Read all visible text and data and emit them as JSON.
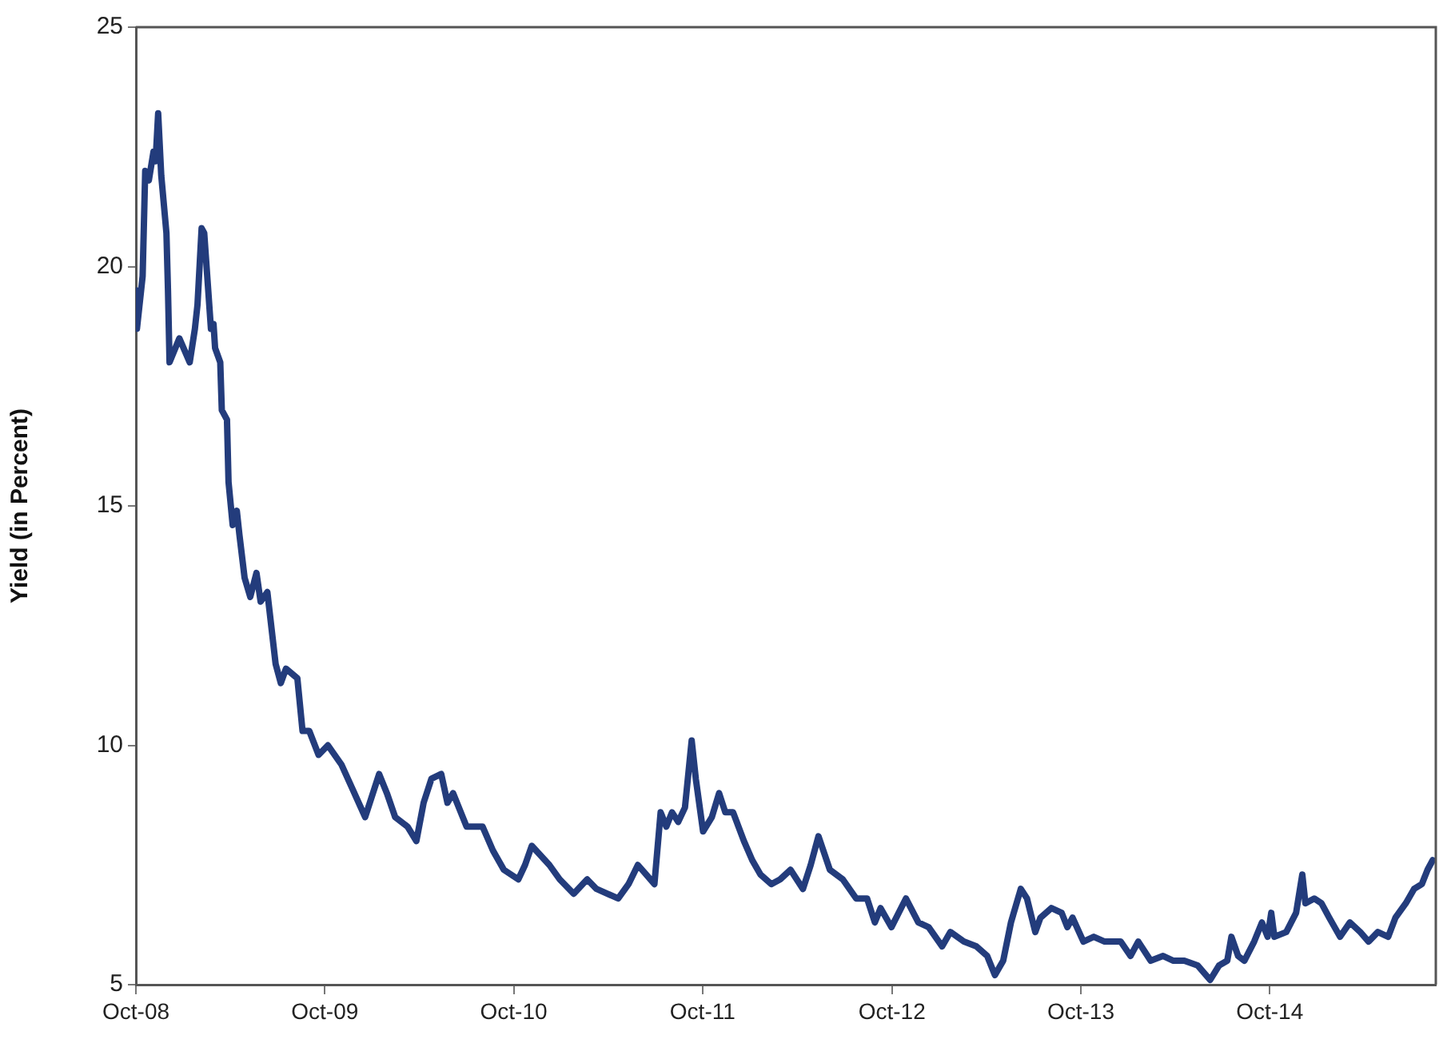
{
  "chart_data": {
    "type": "line",
    "ylabel": "Yield (in Percent)",
    "x": [
      "2008-10-01",
      "2008-10-03",
      "2008-10-14",
      "2008-10-19",
      "2008-10-26",
      "2008-11-04",
      "2008-11-08",
      "2008-11-13",
      "2008-11-19",
      "2008-11-29",
      "2008-12-02",
      "2008-12-05",
      "2008-12-24",
      "2009-01-13",
      "2009-01-23",
      "2009-01-28",
      "2009-02-05",
      "2009-02-10",
      "2009-02-23",
      "2009-02-28",
      "2009-03-03",
      "2009-03-13",
      "2009-03-16",
      "2009-03-26",
      "2009-03-29",
      "2009-04-06",
      "2009-04-14",
      "2009-04-19",
      "2009-04-29",
      "2009-05-10",
      "2009-05-22",
      "2009-05-30",
      "2009-06-12",
      "2009-06-28",
      "2009-07-08",
      "2009-07-18",
      "2009-08-09",
      "2009-08-19",
      "2009-09-01",
      "2009-09-19",
      "2009-10-07",
      "2009-11-02",
      "2009-11-23",
      "2009-12-18",
      "2010-01-14",
      "2010-01-29",
      "2010-02-14",
      "2010-03-10",
      "2010-03-27",
      "2010-04-10",
      "2010-04-25",
      "2010-05-14",
      "2010-05-26",
      "2010-06-06",
      "2010-07-02",
      "2010-08-02",
      "2010-08-22",
      "2010-09-12",
      "2010-10-10",
      "2010-10-23",
      "2010-11-05",
      "2010-12-09",
      "2010-12-29",
      "2011-01-25",
      "2011-02-20",
      "2011-03-10",
      "2011-04-21",
      "2011-05-11",
      "2011-05-29",
      "2011-06-14",
      "2011-06-30",
      "2011-07-12",
      "2011-07-23",
      "2011-08-03",
      "2011-08-15",
      "2011-08-28",
      "2011-09-10",
      "2011-09-18",
      "2011-10-02",
      "2011-10-19",
      "2011-11-02",
      "2011-11-14",
      "2011-11-29",
      "2011-12-20",
      "2012-01-05",
      "2012-01-21",
      "2012-02-11",
      "2012-02-28",
      "2012-03-19",
      "2012-04-12",
      "2012-04-27",
      "2012-05-12",
      "2012-06-03",
      "2012-06-28",
      "2012-07-24",
      "2012-08-14",
      "2012-08-29",
      "2012-09-09",
      "2012-09-30",
      "2012-10-28",
      "2012-11-21",
      "2012-12-11",
      "2013-01-06",
      "2013-01-22",
      "2013-02-17",
      "2013-03-13",
      "2013-04-03",
      "2013-04-18",
      "2013-05-04",
      "2013-05-19",
      "2013-06-07",
      "2013-06-19",
      "2013-07-05",
      "2013-07-15",
      "2013-08-05",
      "2013-08-25",
      "2013-09-05",
      "2013-09-15",
      "2013-10-06",
      "2013-10-26",
      "2013-11-16",
      "2013-12-17",
      "2014-01-05",
      "2014-01-20",
      "2014-02-13",
      "2014-03-09",
      "2014-03-29",
      "2014-04-19",
      "2014-05-15",
      "2014-06-08",
      "2014-06-25",
      "2014-07-11",
      "2014-07-19",
      "2014-08-01",
      "2014-08-13",
      "2014-09-01",
      "2014-09-16",
      "2014-09-27",
      "2014-10-04",
      "2014-10-10",
      "2014-11-02",
      "2014-11-21",
      "2014-12-03",
      "2014-12-09",
      "2014-12-26",
      "2015-01-09",
      "2015-01-24",
      "2015-02-14",
      "2015-03-05",
      "2015-03-25",
      "2015-04-10",
      "2015-04-28",
      "2015-05-18",
      "2015-06-01",
      "2015-06-21",
      "2015-07-07",
      "2015-07-22",
      "2015-08-02",
      "2015-08-12"
    ],
    "series": [
      {
        "color": "#233c7c",
        "values": [
          19.5,
          18.7,
          19.8,
          22.0,
          21.8,
          22.4,
          22.2,
          23.2,
          21.9,
          20.7,
          19.5,
          18.0,
          18.5,
          18.0,
          18.7,
          19.2,
          20.8,
          20.7,
          18.7,
          18.8,
          18.3,
          18.0,
          17.0,
          16.8,
          15.5,
          14.6,
          14.9,
          14.4,
          13.5,
          13.1,
          13.6,
          13.0,
          13.2,
          11.7,
          11.3,
          11.6,
          11.4,
          10.3,
          10.3,
          9.8,
          10.0,
          9.6,
          9.1,
          8.5,
          9.4,
          9.0,
          8.5,
          8.3,
          8.0,
          8.8,
          9.3,
          9.4,
          8.8,
          9.0,
          8.3,
          8.3,
          7.8,
          7.4,
          7.2,
          7.5,
          7.9,
          7.5,
          7.2,
          6.9,
          7.2,
          7.0,
          6.8,
          7.1,
          7.5,
          7.3,
          7.1,
          8.6,
          8.3,
          8.6,
          8.4,
          8.7,
          10.1,
          9.3,
          8.2,
          8.5,
          9.0,
          8.6,
          8.6,
          8.0,
          7.6,
          7.3,
          7.1,
          7.2,
          7.4,
          7.0,
          7.5,
          8.1,
          7.4,
          7.2,
          6.8,
          6.8,
          6.3,
          6.6,
          6.2,
          6.8,
          6.3,
          6.2,
          5.8,
          6.1,
          5.9,
          5.8,
          5.6,
          5.2,
          5.5,
          6.3,
          7.0,
          6.8,
          6.1,
          6.4,
          6.6,
          6.5,
          6.2,
          6.4,
          5.9,
          6.0,
          5.9,
          5.9,
          5.6,
          5.9,
          5.5,
          5.6,
          5.5,
          5.5,
          5.4,
          5.1,
          5.4,
          5.5,
          6.0,
          5.6,
          5.5,
          5.9,
          6.3,
          6.0,
          6.5,
          6.0,
          6.1,
          6.5,
          7.3,
          6.7,
          6.8,
          6.7,
          6.4,
          6.0,
          6.3,
          6.1,
          5.9,
          6.1,
          6.0,
          6.4,
          6.7,
          7.0,
          7.1,
          7.4,
          7.6
        ]
      }
    ],
    "xlim": [
      "2008-10-01",
      "2015-08-18"
    ],
    "xticks": [
      {
        "value": "2008-10-01",
        "label": "Oct-08"
      },
      {
        "value": "2009-10-01",
        "label": "Oct-09"
      },
      {
        "value": "2010-10-01",
        "label": "Oct-10"
      },
      {
        "value": "2011-10-01",
        "label": "Oct-11"
      },
      {
        "value": "2012-10-01",
        "label": "Oct-12"
      },
      {
        "value": "2013-10-01",
        "label": "Oct-13"
      },
      {
        "value": "2014-10-01",
        "label": "Oct-14"
      }
    ],
    "ylim": [
      5,
      25
    ],
    "yticks": [
      5,
      10,
      15,
      20,
      25
    ],
    "grid": false,
    "legend": false,
    "marker": "none",
    "line_style": "solid"
  }
}
